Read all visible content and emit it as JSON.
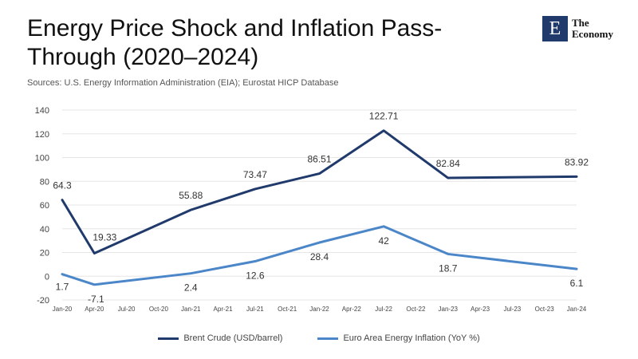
{
  "header": {
    "title": "Energy Price Shock and Inflation Pass-Through (2020–2024)",
    "subtitle": "Sources: U.S. Energy Information Administration (EIA); Eurostat HICP Database"
  },
  "brand": {
    "mark": "E",
    "line1": "The",
    "line2": "Economy",
    "color": "#1f3a6b"
  },
  "chart_data": {
    "type": "line",
    "title": "Energy Price Shock and Inflation Pass-Through (2020–2024)",
    "subtitle": "Sources: U.S. Energy Information Administration (EIA); Eurostat HICP Database",
    "xlabel": "",
    "ylabel": "",
    "ylim": [
      -20,
      140
    ],
    "yticks": [
      -20,
      0,
      20,
      40,
      60,
      80,
      100,
      120,
      140
    ],
    "categories": [
      "Jan-20",
      "Apr-20",
      "Jul-20",
      "Oct-20",
      "Jan-21",
      "Apr-21",
      "Jul-21",
      "Oct-21",
      "Jan-22",
      "Apr-22",
      "Jul-22",
      "Oct-22",
      "Jan-23",
      "Apr-23",
      "Jul-23",
      "Oct-23",
      "Jan-24"
    ],
    "grid": true,
    "legend": "bottom",
    "series": [
      {
        "name": "Brent Crude (USD/barrel)",
        "color": "#1f3a6b",
        "points": [
          {
            "x": "Jan-20",
            "y": 64.3
          },
          {
            "x": "Apr-20",
            "y": 19.33
          },
          {
            "x": "Jan-21",
            "y": 55.88
          },
          {
            "x": "Jul-21",
            "y": 73.47
          },
          {
            "x": "Jan-22",
            "y": 86.51
          },
          {
            "x": "Jul-22",
            "y": 122.71
          },
          {
            "x": "Jan-23",
            "y": 82.84
          },
          {
            "x": "Jan-24",
            "y": 83.92
          }
        ]
      },
      {
        "name": "Euro Area Energy Inflation (YoY %)",
        "color": "#4a86c8",
        "points": [
          {
            "x": "Jan-20",
            "y": 1.7
          },
          {
            "x": "Apr-20",
            "y": -7.1
          },
          {
            "x": "Jan-21",
            "y": 2.4
          },
          {
            "x": "Jul-21",
            "y": 12.6
          },
          {
            "x": "Jan-22",
            "y": 28.4
          },
          {
            "x": "Jul-22",
            "y": 42
          },
          {
            "x": "Jan-23",
            "y": 18.7
          },
          {
            "x": "Jan-24",
            "y": 6.1
          }
        ]
      }
    ]
  }
}
